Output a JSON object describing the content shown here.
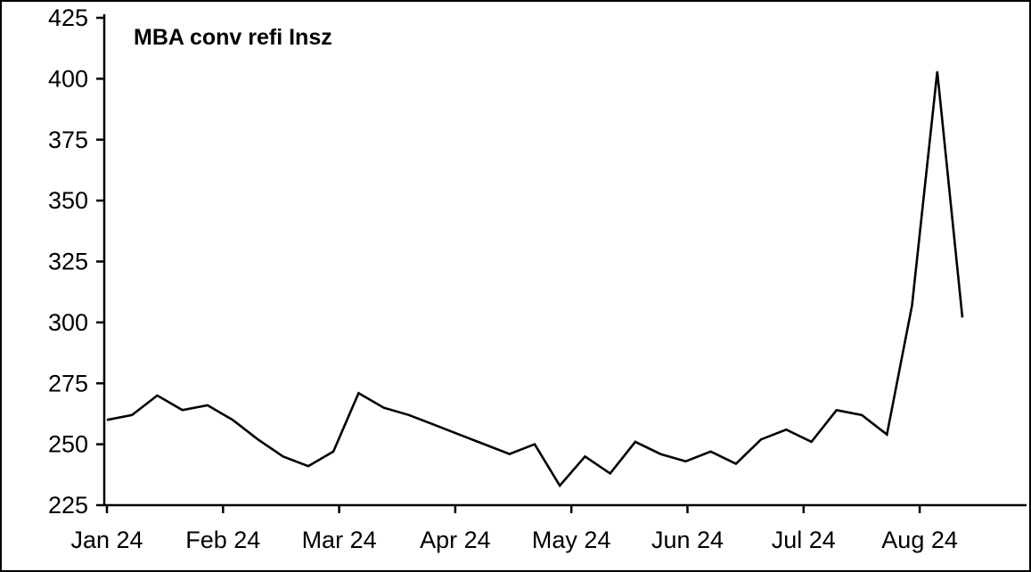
{
  "chart_data": {
    "type": "line",
    "title": "MBA conv refi Insz",
    "frequency": "weekly",
    "x_tick_labels": [
      "Jan 24",
      "Feb 24",
      "Mar 24",
      "Apr 24",
      "May 24",
      "Jun 24",
      "Jul 24",
      "Aug 24"
    ],
    "y_ticks": [
      225,
      250,
      275,
      300,
      325,
      350,
      375,
      400,
      425
    ],
    "ylim": [
      225,
      425
    ],
    "grid": false,
    "legend": false,
    "line_color": "#000000",
    "axis_color": "#000000",
    "background_color": "#ffffff",
    "values": [
      260,
      262,
      270,
      264,
      266,
      260,
      252,
      245,
      241,
      247,
      271,
      265,
      262,
      258,
      254,
      250,
      246,
      250,
      233,
      245,
      238,
      251,
      246,
      243,
      247,
      242,
      252,
      256,
      251,
      264,
      262,
      254,
      307,
      403,
      302
    ]
  }
}
